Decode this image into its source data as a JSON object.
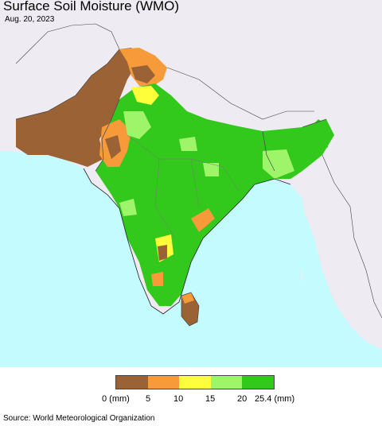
{
  "title": "Surface Soil Moisture (WMO)",
  "date": "Aug. 20, 2023",
  "source": "Source: World Meteorological Organization",
  "legend": {
    "labels": [
      "0 (mm)",
      "5",
      "10",
      "15",
      "20",
      "25.4 (mm)"
    ],
    "colors": [
      "#9b6236",
      "#f79a3a",
      "#fefe3b",
      "#9ef569",
      "#33c81c"
    ]
  },
  "colors": {
    "ocean": "#c4fbff",
    "land_outside": "#efebf2",
    "no_data": "#efebf2"
  }
}
